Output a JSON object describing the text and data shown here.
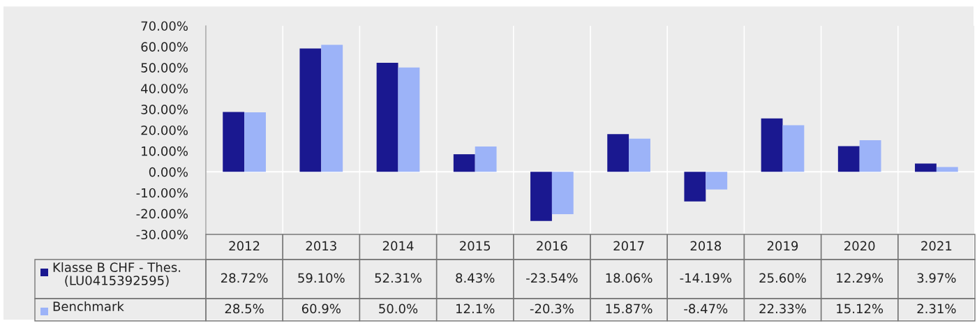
{
  "chart_data": {
    "type": "bar",
    "categories": [
      "2012",
      "2013",
      "2014",
      "2015",
      "2016",
      "2017",
      "2018",
      "2019",
      "2020",
      "2021"
    ],
    "series": [
      {
        "name": "Klasse B CHF - Thes.\n(LU0415392595)",
        "color": "#1a1890",
        "values": [
          28.72,
          59.1,
          52.31,
          8.43,
          -23.54,
          18.06,
          -14.19,
          25.6,
          12.29,
          3.97
        ],
        "value_labels": [
          "28.72%",
          "59.10%",
          "52.31%",
          "8.43%",
          "-23.54%",
          "18.06%",
          "-14.19%",
          "25.60%",
          "12.29%",
          "3.97%"
        ]
      },
      {
        "name": "Benchmark",
        "color": "#9cb3f8",
        "values": [
          28.5,
          60.9,
          50.0,
          12.1,
          -20.3,
          15.87,
          -8.47,
          22.33,
          15.12,
          2.31
        ],
        "value_labels": [
          "28.5%",
          "60.9%",
          "50.0%",
          "12.1%",
          "-20.3%",
          "15.87%",
          "-8.47%",
          "22.33%",
          "15.12%",
          "2.31%"
        ]
      }
    ],
    "ylim": [
      -30,
      70
    ],
    "yticks": [
      {
        "value": 70,
        "label": "70.00%"
      },
      {
        "value": 60,
        "label": "60.00%"
      },
      {
        "value": 50,
        "label": "50.00%"
      },
      {
        "value": 40,
        "label": "40.00%"
      },
      {
        "value": 30,
        "label": "30.00%"
      },
      {
        "value": 20,
        "label": "20.00%"
      },
      {
        "value": 10,
        "label": "10.00%"
      },
      {
        "value": 0,
        "label": "0.00%"
      },
      {
        "value": -10,
        "label": "-10.00%"
      },
      {
        "value": -20,
        "label": "-20.00%"
      },
      {
        "value": -30,
        "label": "-30.00%"
      }
    ],
    "grid": "x",
    "legend": "bottom"
  }
}
